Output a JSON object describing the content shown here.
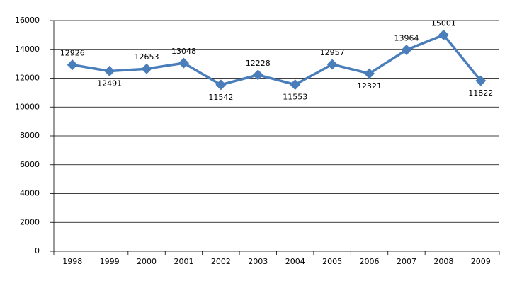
{
  "chart_data": {
    "type": "line",
    "categories": [
      "1998",
      "1999",
      "2000",
      "2001",
      "2002",
      "2003",
      "2004",
      "2005",
      "2006",
      "2007",
      "2008",
      "2009"
    ],
    "values": [
      12926,
      12491,
      12653,
      13048,
      11542,
      12228,
      11553,
      12957,
      12321,
      13964,
      15001,
      11822
    ],
    "color": "#4a7ebb",
    "ylim": [
      0,
      16000
    ],
    "yticks": [
      0,
      2000,
      4000,
      6000,
      8000,
      10000,
      12000,
      14000,
      16000
    ],
    "grid": true
  }
}
